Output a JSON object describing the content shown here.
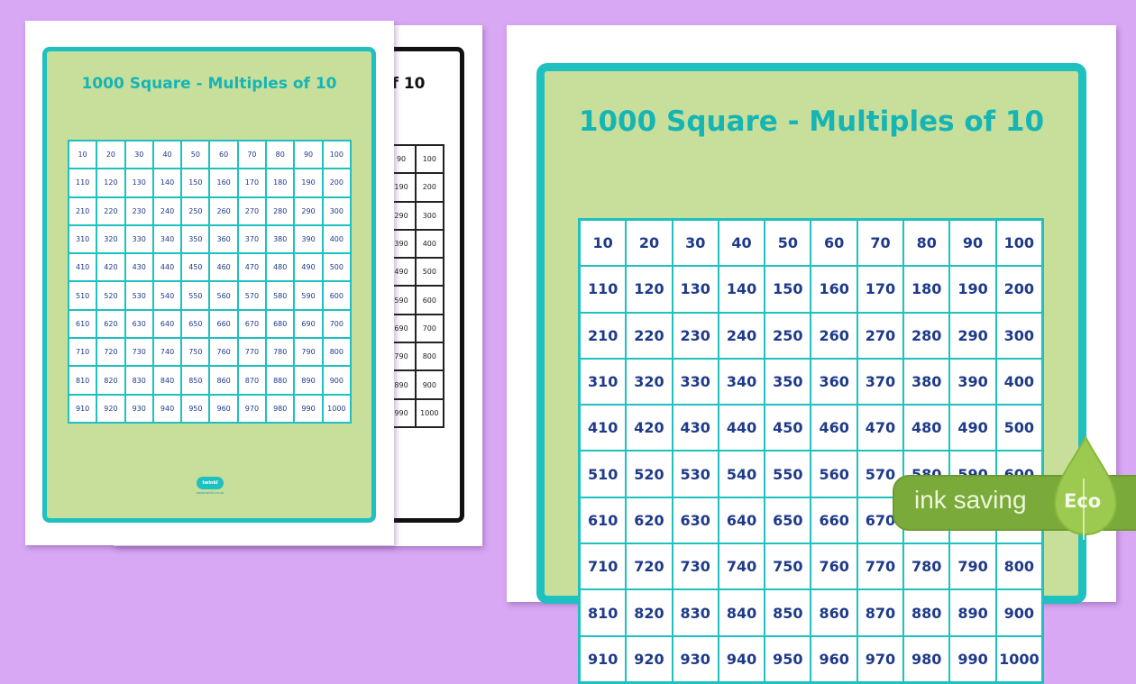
{
  "document_title": "1000 Square - Multiples of 10",
  "logo": {
    "name": "twinkl",
    "url": "www.twinkl.co.uk"
  },
  "grid": [
    [
      10,
      20,
      30,
      40,
      50,
      60,
      70,
      80,
      90,
      100
    ],
    [
      110,
      120,
      130,
      140,
      150,
      160,
      170,
      180,
      190,
      200
    ],
    [
      210,
      220,
      230,
      240,
      250,
      260,
      270,
      280,
      290,
      300
    ],
    [
      310,
      320,
      330,
      340,
      350,
      360,
      370,
      380,
      390,
      400
    ],
    [
      410,
      420,
      430,
      440,
      450,
      460,
      470,
      480,
      490,
      500
    ],
    [
      510,
      520,
      530,
      540,
      550,
      560,
      570,
      580,
      590,
      600
    ],
    [
      610,
      620,
      630,
      640,
      650,
      660,
      670,
      680,
      690,
      700
    ],
    [
      710,
      720,
      730,
      740,
      750,
      760,
      770,
      780,
      790,
      800
    ],
    [
      810,
      820,
      830,
      840,
      850,
      860,
      870,
      880,
      890,
      900
    ],
    [
      910,
      920,
      930,
      940,
      950,
      960,
      970,
      980,
      990,
      1000
    ]
  ],
  "badge": {
    "text": "ink saving",
    "eco_label": "Eco"
  },
  "colors": {
    "background": "#d8a8f4",
    "teal": "#1ec0c0",
    "card_green": "#c8de9b",
    "number_navy": "#1e3a8a",
    "badge_green": "#7aab3a"
  }
}
